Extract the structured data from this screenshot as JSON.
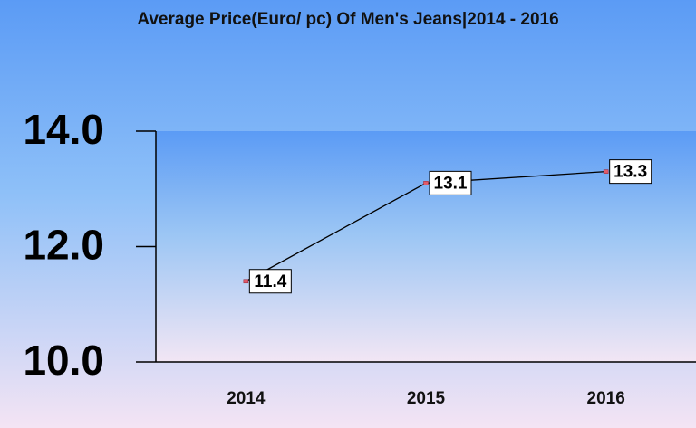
{
  "chart_data": {
    "type": "line",
    "title": "Average Price(Euro/ pc) Of Men's Jeans|2014 - 2016",
    "categories": [
      "2014",
      "2015",
      "2016"
    ],
    "values": [
      11.4,
      13.1,
      13.3
    ],
    "color": "#000000",
    "marker_color": "#e05a6a",
    "ylim": [
      10,
      14
    ],
    "yticks": [
      {
        "value": 10,
        "label": "10.0"
      },
      {
        "value": 12,
        "label": "12.0"
      },
      {
        "value": 14,
        "label": "14.0"
      }
    ],
    "grid": false
  }
}
